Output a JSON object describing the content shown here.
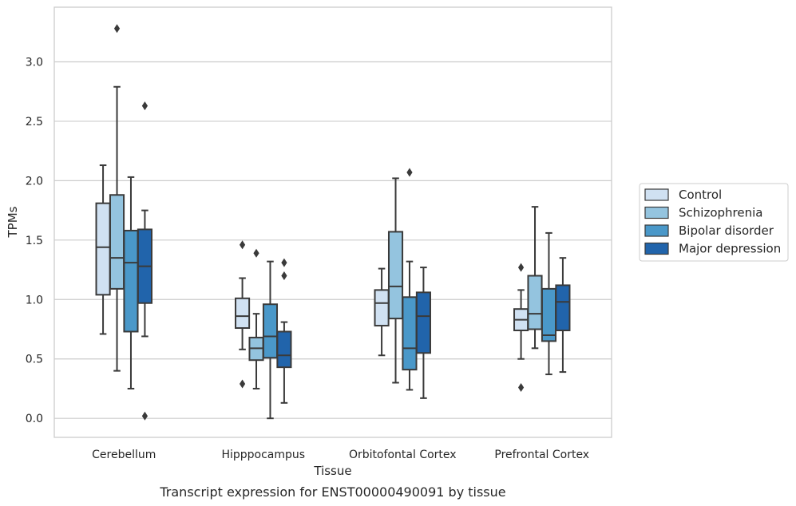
{
  "caption": "Transcript expression for ENST00000490091 by tissue",
  "chart_data": {
    "type": "box",
    "xlabel": "Tissue",
    "ylabel": "TPMs",
    "ylim": [
      -0.16,
      3.46
    ],
    "yticks": [
      0.0,
      0.5,
      1.0,
      1.5,
      2.0,
      2.5,
      3.0
    ],
    "ytick_labels": [
      "0.0",
      "0.5",
      "1.0",
      "1.5",
      "2.0",
      "2.5",
      "3.0"
    ],
    "grid": "y",
    "legend_position": "right",
    "categories": [
      "Cerebellum",
      "Hipppocampus",
      "Orbitofontal Cortex",
      "Prefrontal Cortex"
    ],
    "series": [
      {
        "name": "Control",
        "color": "#d0e1f2",
        "boxes": [
          {
            "whislo": 0.71,
            "q1": 1.04,
            "med": 1.44,
            "q3": 1.81,
            "whishi": 2.13,
            "fliers": []
          },
          {
            "whislo": 0.58,
            "q1": 0.76,
            "med": 0.86,
            "q3": 1.01,
            "whishi": 1.18,
            "fliers": [
              1.46,
              0.29
            ]
          },
          {
            "whislo": 0.53,
            "q1": 0.78,
            "med": 0.97,
            "q3": 1.08,
            "whishi": 1.26,
            "fliers": []
          },
          {
            "whislo": 0.5,
            "q1": 0.74,
            "med": 0.83,
            "q3": 0.92,
            "whishi": 1.08,
            "fliers": [
              1.27,
              0.26
            ]
          }
        ]
      },
      {
        "name": "Schizophrenia",
        "color": "#94c4df",
        "boxes": [
          {
            "whislo": 0.4,
            "q1": 1.09,
            "med": 1.35,
            "q3": 1.88,
            "whishi": 2.79,
            "fliers": [
              3.28
            ]
          },
          {
            "whislo": 0.25,
            "q1": 0.49,
            "med": 0.59,
            "q3": 0.68,
            "whishi": 0.88,
            "fliers": [
              1.39
            ]
          },
          {
            "whislo": 0.3,
            "q1": 0.84,
            "med": 1.11,
            "q3": 1.57,
            "whishi": 2.02,
            "fliers": []
          },
          {
            "whislo": 0.59,
            "q1": 0.75,
            "med": 0.88,
            "q3": 1.2,
            "whishi": 1.78,
            "fliers": []
          }
        ]
      },
      {
        "name": "Bipolar disorder",
        "color": "#4a98c9",
        "boxes": [
          {
            "whislo": 0.25,
            "q1": 0.73,
            "med": 1.31,
            "q3": 1.58,
            "whishi": 2.03,
            "fliers": []
          },
          {
            "whislo": 0.0,
            "q1": 0.51,
            "med": 0.69,
            "q3": 0.96,
            "whishi": 1.32,
            "fliers": []
          },
          {
            "whislo": 0.24,
            "q1": 0.41,
            "med": 0.59,
            "q3": 1.02,
            "whishi": 1.32,
            "fliers": [
              2.07
            ]
          },
          {
            "whislo": 0.37,
            "q1": 0.65,
            "med": 0.7,
            "q3": 1.09,
            "whishi": 1.56,
            "fliers": []
          }
        ]
      },
      {
        "name": "Major depression",
        "color": "#2164ab",
        "boxes": [
          {
            "whislo": 0.69,
            "q1": 0.97,
            "med": 1.28,
            "q3": 1.59,
            "whishi": 1.75,
            "fliers": [
              2.63,
              0.02
            ]
          },
          {
            "whislo": 0.13,
            "q1": 0.43,
            "med": 0.53,
            "q3": 0.73,
            "whishi": 0.81,
            "fliers": [
              1.31,
              1.2
            ]
          },
          {
            "whislo": 0.17,
            "q1": 0.55,
            "med": 0.86,
            "q3": 1.06,
            "whishi": 1.27,
            "fliers": []
          },
          {
            "whislo": 0.39,
            "q1": 0.74,
            "med": 0.98,
            "q3": 1.12,
            "whishi": 1.35,
            "fliers": []
          }
        ]
      }
    ]
  }
}
